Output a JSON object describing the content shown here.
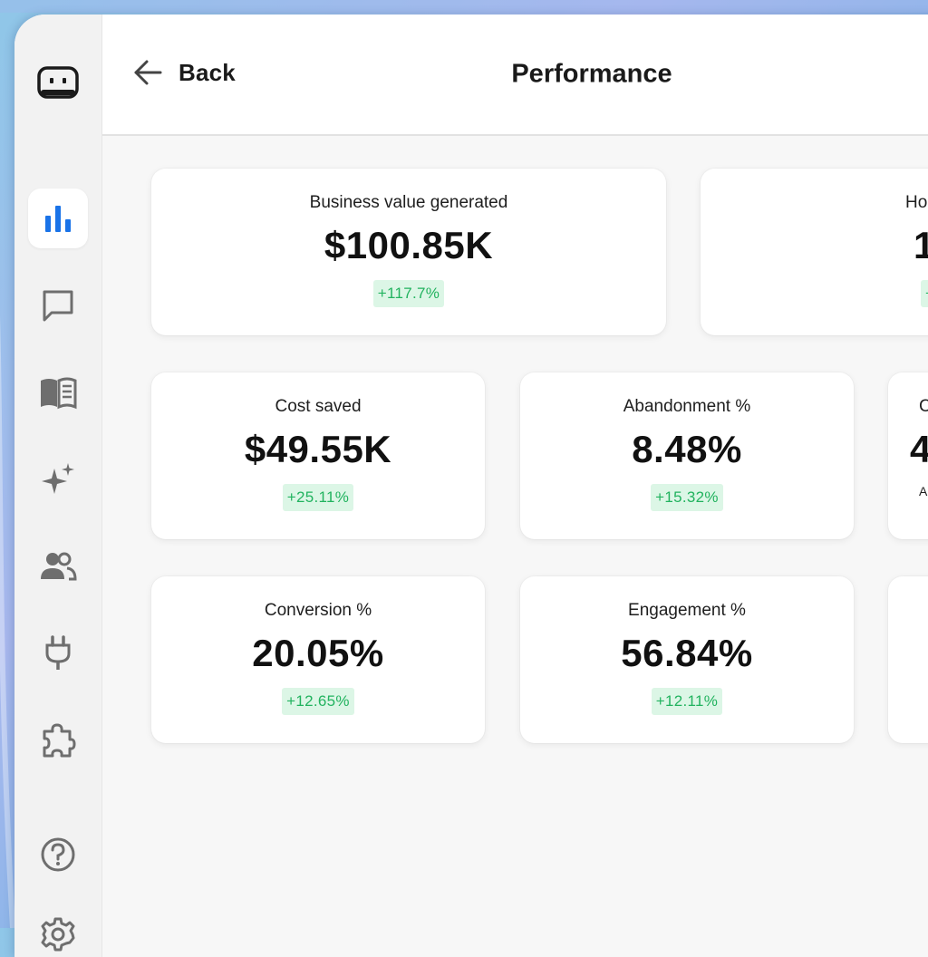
{
  "header": {
    "back_label": "Back",
    "title": "Performance"
  },
  "sidebar": {
    "items": [
      {
        "icon": "logo-icon"
      },
      {
        "icon": "bar-chart-icon",
        "active": true
      },
      {
        "icon": "chat-icon"
      },
      {
        "icon": "book-icon"
      },
      {
        "icon": "sparkle-icon"
      },
      {
        "icon": "users-icon"
      },
      {
        "icon": "plug-icon"
      },
      {
        "icon": "puzzle-icon"
      },
      {
        "icon": "help-icon"
      },
      {
        "icon": "gear-icon"
      }
    ]
  },
  "metrics": {
    "business_value": {
      "label": "Business value generated",
      "value": "$100.85K",
      "change": "+117.7%"
    },
    "hours": {
      "label": "Ho",
      "value": "1",
      "change": "+"
    },
    "cost_saved": {
      "label": "Cost saved",
      "value": "$49.55K",
      "change": "+25.11%"
    },
    "abandonment": {
      "label": "Abandonment %",
      "value": "8.48%",
      "change": "+15.32%"
    },
    "partial_third": {
      "label": "C",
      "value": "4",
      "sub": "A"
    },
    "conversion": {
      "label": "Conversion %",
      "value": "20.05%",
      "change": "+12.65%"
    },
    "engagement": {
      "label": "Engagement %",
      "value": "56.84%",
      "change": "+12.11%"
    }
  },
  "colors": {
    "accent": "#1a73e8",
    "positive_text": "#22b35f",
    "positive_bg": "#dcf6e6",
    "icon_gray": "#6e6e6e"
  }
}
